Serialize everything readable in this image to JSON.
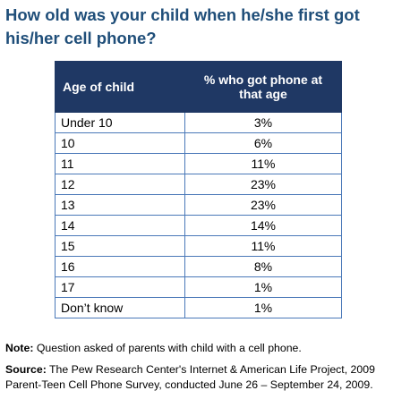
{
  "chart_data": {
    "type": "table",
    "title": "How old was your child when he/she first got his/her cell phone?",
    "columns": [
      "Age of child",
      "% who got phone at that age"
    ],
    "rows": [
      {
        "age": "Under 10",
        "percent": "3%"
      },
      {
        "age": "10",
        "percent": "6%"
      },
      {
        "age": "11",
        "percent": "11%"
      },
      {
        "age": "12",
        "percent": "23%"
      },
      {
        "age": "13",
        "percent": "23%"
      },
      {
        "age": "14",
        "percent": "14%"
      },
      {
        "age": "15",
        "percent": "11%"
      },
      {
        "age": "16",
        "percent": "8%"
      },
      {
        "age": "17",
        "percent": "1%"
      },
      {
        "age": "Don’t know",
        "percent": "1%"
      }
    ],
    "header_color": "#1f3864",
    "title_color": "#1f4e79",
    "border_color": "#4a78b8"
  },
  "note": {
    "label": "Note:",
    "text": " Question asked of parents with child with a cell phone."
  },
  "source": {
    "label": "Source:",
    "text": " The Pew Research Center's Internet & American Life Project, 2009 Parent-Teen Cell Phone Survey, conducted June 26 – September 24, 2009."
  }
}
